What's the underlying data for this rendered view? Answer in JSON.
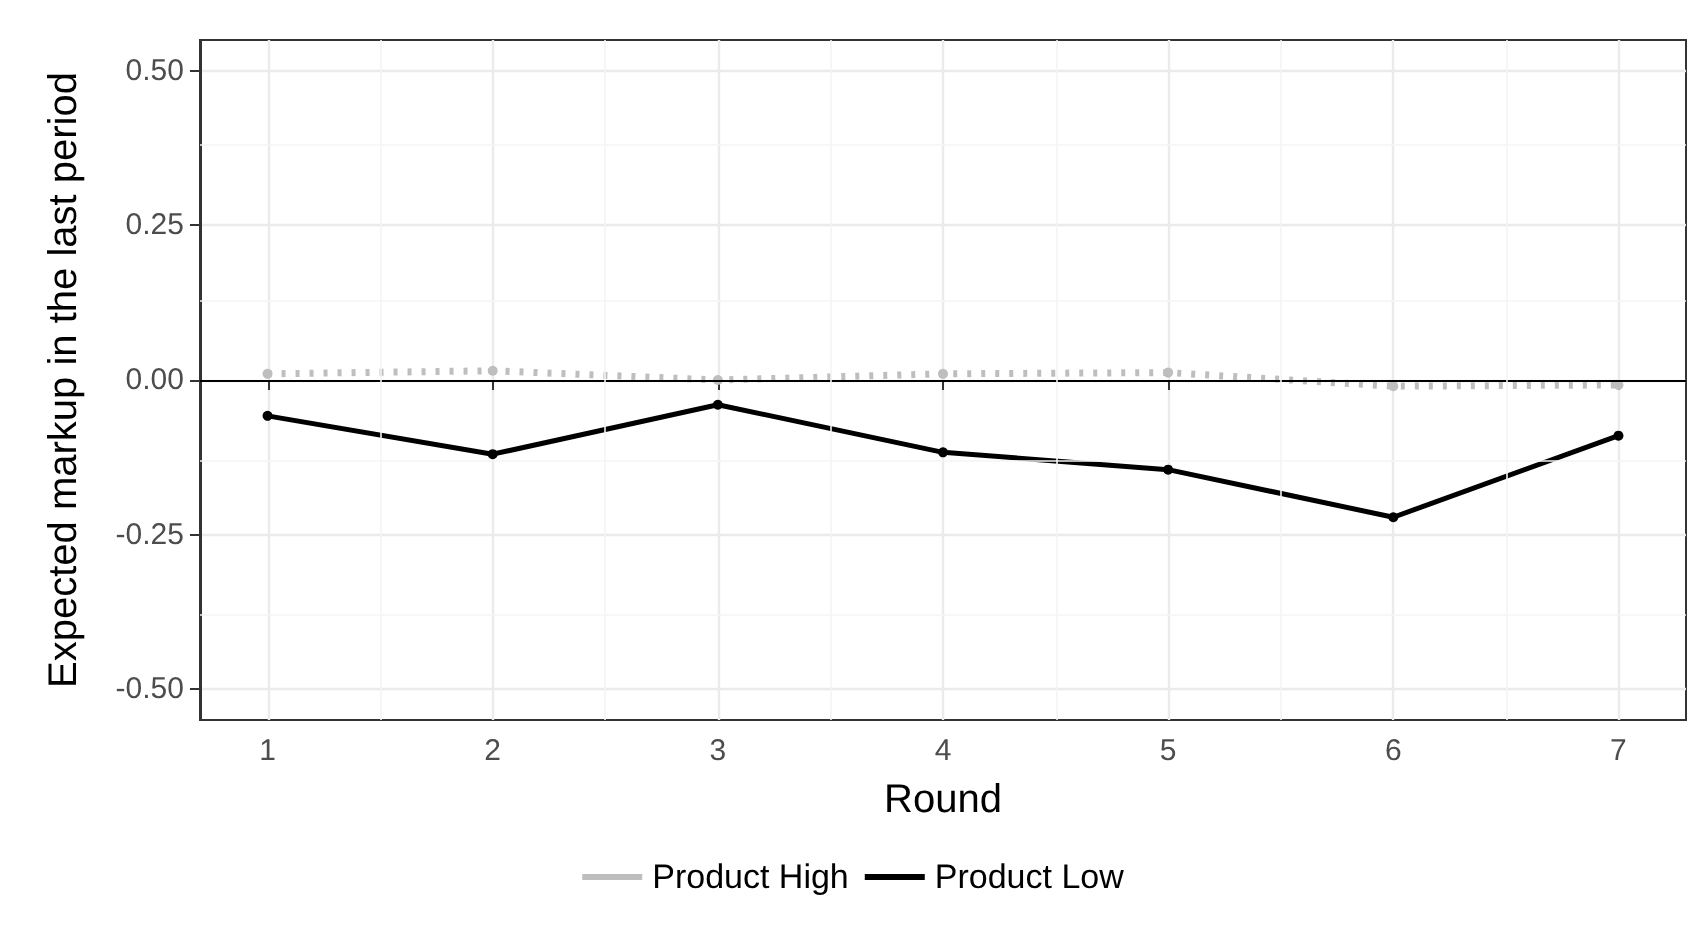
{
  "chart_data": {
    "type": "line",
    "xlabel": "Round",
    "ylabel": "Expected markup in the last period",
    "x": [
      1,
      2,
      3,
      4,
      5,
      6,
      7
    ],
    "series": [
      {
        "name": "Product High",
        "color": "#bebebe",
        "line_style": "dotted",
        "values": [
          0.01,
          0.015,
          0.0,
          0.01,
          0.012,
          -0.01,
          -0.008
        ]
      },
      {
        "name": "Product Low",
        "color": "#000000",
        "line_style": "solid",
        "values": [
          -0.058,
          -0.12,
          -0.04,
          -0.117,
          -0.145,
          -0.222,
          -0.09
        ]
      }
    ],
    "xlim": [
      0.7,
      7.3
    ],
    "xticks": [
      1,
      2,
      3,
      4,
      5,
      6,
      7
    ],
    "ylim": [
      -0.55,
      0.55
    ],
    "yticks": [
      {
        "value": -0.5,
        "label": "-0.50"
      },
      {
        "value": -0.25,
        "label": "-0.25"
      },
      {
        "value": 0,
        "label": "0.00"
      },
      {
        "value": 0.25,
        "label": "0.25"
      },
      {
        "value": 0.5,
        "label": "0.50"
      }
    ],
    "ref_lines": [
      {
        "axis": "y",
        "value": 0,
        "color": "#000000"
      }
    ],
    "grid": true,
    "legend": "bottom",
    "marker": "circle"
  }
}
